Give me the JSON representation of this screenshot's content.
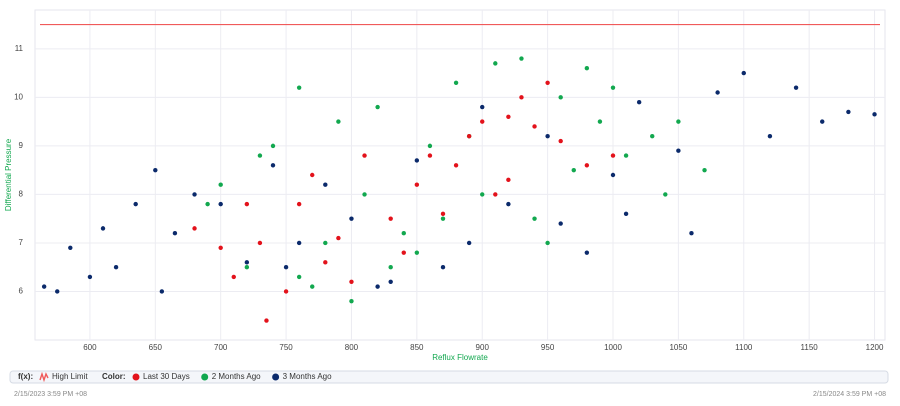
{
  "chart_data": {
    "type": "scatter",
    "xlabel": "Reflux Flowrate",
    "ylabel": "Differential Pressure",
    "xlim": [
      558,
      1208
    ],
    "ylim": [
      5.0,
      11.8
    ],
    "xticks": [
      600,
      650,
      700,
      750,
      800,
      850,
      900,
      950,
      1000,
      1050,
      1100,
      1150,
      1200
    ],
    "yticks": [
      6,
      7,
      8,
      9,
      10,
      11
    ],
    "grid": true,
    "high_limit": {
      "name": "High Limit",
      "value": 11.5,
      "color": "#f05a5a"
    },
    "legend_labels": {
      "function": "f(x):",
      "color": "Color:"
    },
    "series": [
      {
        "name": "3 Months Ago",
        "color": "#0b2a6b",
        "x": [
          565,
          575,
          585,
          600,
          610,
          620,
          635,
          650,
          655,
          665,
          680,
          700,
          720,
          740,
          760,
          780,
          800,
          820,
          850,
          870,
          900,
          920,
          950,
          980,
          1000,
          1020,
          1050,
          1060,
          1080,
          1100,
          1120,
          1140,
          1160,
          1180,
          1200,
          1010,
          960,
          890,
          830,
          750
        ],
        "values": [
          6.1,
          6.0,
          6.9,
          6.3,
          7.3,
          6.5,
          7.8,
          8.5,
          6.0,
          7.2,
          8.0,
          7.8,
          6.6,
          8.6,
          7.0,
          8.2,
          7.5,
          6.1,
          8.7,
          6.5,
          9.8,
          7.8,
          9.2,
          6.8,
          8.4,
          9.9,
          8.9,
          7.2,
          10.1,
          10.5,
          9.2,
          10.2,
          9.5,
          9.7,
          9.65,
          7.6,
          7.4,
          7.0,
          6.2,
          6.5
        ]
      },
      {
        "name": "2 Months Ago",
        "color": "#12a84f",
        "x": [
          690,
          700,
          720,
          740,
          760,
          770,
          780,
          790,
          800,
          810,
          820,
          840,
          850,
          860,
          880,
          900,
          910,
          930,
          940,
          960,
          970,
          990,
          1000,
          1010,
          1030,
          1050,
          1070,
          870,
          830,
          760,
          950,
          1040,
          980,
          890,
          730
        ],
        "values": [
          7.8,
          8.2,
          6.5,
          9.0,
          10.2,
          6.1,
          7.0,
          9.5,
          5.8,
          8.0,
          9.8,
          7.2,
          6.8,
          9.0,
          10.3,
          8.0,
          10.7,
          10.8,
          7.5,
          10.0,
          8.5,
          9.5,
          10.2,
          8.8,
          9.2,
          9.5,
          8.5,
          7.5,
          6.5,
          6.3,
          7.0,
          8.0,
          10.6,
          9.2,
          8.8
        ]
      },
      {
        "name": "Last 30 Days",
        "color": "#e3121b",
        "x": [
          680,
          700,
          710,
          720,
          730,
          735,
          750,
          760,
          770,
          790,
          800,
          810,
          830,
          850,
          860,
          880,
          890,
          900,
          910,
          920,
          930,
          940,
          950,
          960,
          980,
          1000,
          840,
          780,
          870,
          920
        ],
        "values": [
          7.3,
          6.9,
          6.3,
          7.8,
          7.0,
          5.4,
          6.0,
          7.8,
          8.4,
          7.1,
          6.2,
          8.8,
          7.5,
          8.2,
          8.8,
          8.6,
          9.2,
          9.5,
          8.0,
          9.6,
          10.0,
          9.4,
          10.3,
          9.1,
          8.6,
          8.8,
          6.8,
          6.6,
          7.6,
          8.3
        ]
      }
    ]
  },
  "footer": {
    "start": "2/15/2023 3:59 PM +08",
    "end": "2/15/2024 3:59 PM +08"
  }
}
